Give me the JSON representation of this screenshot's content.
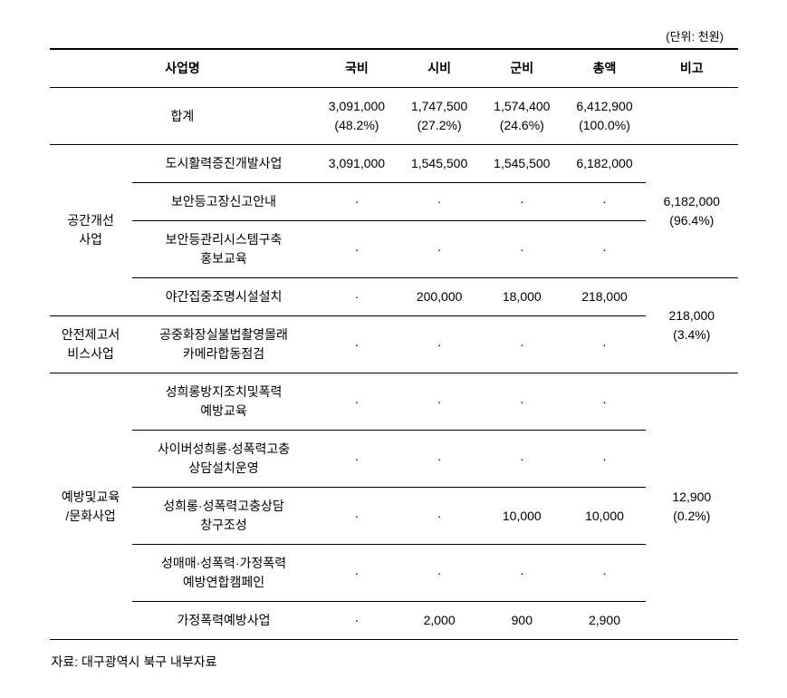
{
  "unit": "(단위: 천원)",
  "header": {
    "project_name": "사업명",
    "national": "국비",
    "city": "시비",
    "county": "군비",
    "total": "총액",
    "note": "비고"
  },
  "rows": {
    "sum": {
      "label": "합계",
      "national": "3,091,000\n(48.2%)",
      "city": "1,747,500\n(27.2%)",
      "county": "1,574,400\n(24.6%)",
      "total": "6,412,900\n(100.0%)",
      "note": ""
    },
    "cat1": {
      "label": "공간개선\n사업"
    },
    "cat2": {
      "label": "안전제고서\n비스사업"
    },
    "cat3": {
      "label": "예방및교육\n/문화사업"
    },
    "r1": {
      "proj": "도시활력증진개발사업",
      "national": "3,091,000",
      "city": "1,545,500",
      "county": "1,545,500",
      "total": "6,182,000"
    },
    "r2": {
      "proj": "보안등고장신고안내",
      "national": "·",
      "city": "·",
      "county": "·",
      "total": "·"
    },
    "r3": {
      "proj": "보안등관리시스템구축\n홍보교육",
      "national": "·",
      "city": "·",
      "county": "·",
      "total": "·"
    },
    "r4": {
      "proj": "야간집중조명시설설치",
      "national": "·",
      "city": "200,000",
      "county": "18,000",
      "total": "218,000"
    },
    "r5": {
      "proj": "공중화장실불법촬영몰래\n카메라합동점검",
      "national": "·",
      "city": "·",
      "county": "·",
      "total": "·"
    },
    "r6": {
      "proj": "성희롱방지조치및폭력\n예방교육",
      "national": "·",
      "city": "·",
      "county": "·",
      "total": "·"
    },
    "r7": {
      "proj": "사이버성희롱·성폭력고충\n상담설치운영",
      "national": "·",
      "city": "·",
      "county": "·",
      "total": "·"
    },
    "r8": {
      "proj": "성희롱·성폭력고충상담\n창구조성",
      "national": "·",
      "city": "·",
      "county": "10,000",
      "total": "10,000"
    },
    "r9": {
      "proj": "성매매·성폭력·가정폭력\n예방연합캠페인",
      "national": "·",
      "city": "·",
      "county": "·",
      "total": "·"
    },
    "r10": {
      "proj": "가정폭력예방사업",
      "national": "·",
      "city": "2,000",
      "county": "900",
      "total": "2,900"
    },
    "note1": "6,182,000\n(96.4%)",
    "note2": "218,000\n(3.4%)",
    "note3": "12,900\n(0.2%)"
  },
  "source": "자료: 대구광역시 북구 내부자료"
}
